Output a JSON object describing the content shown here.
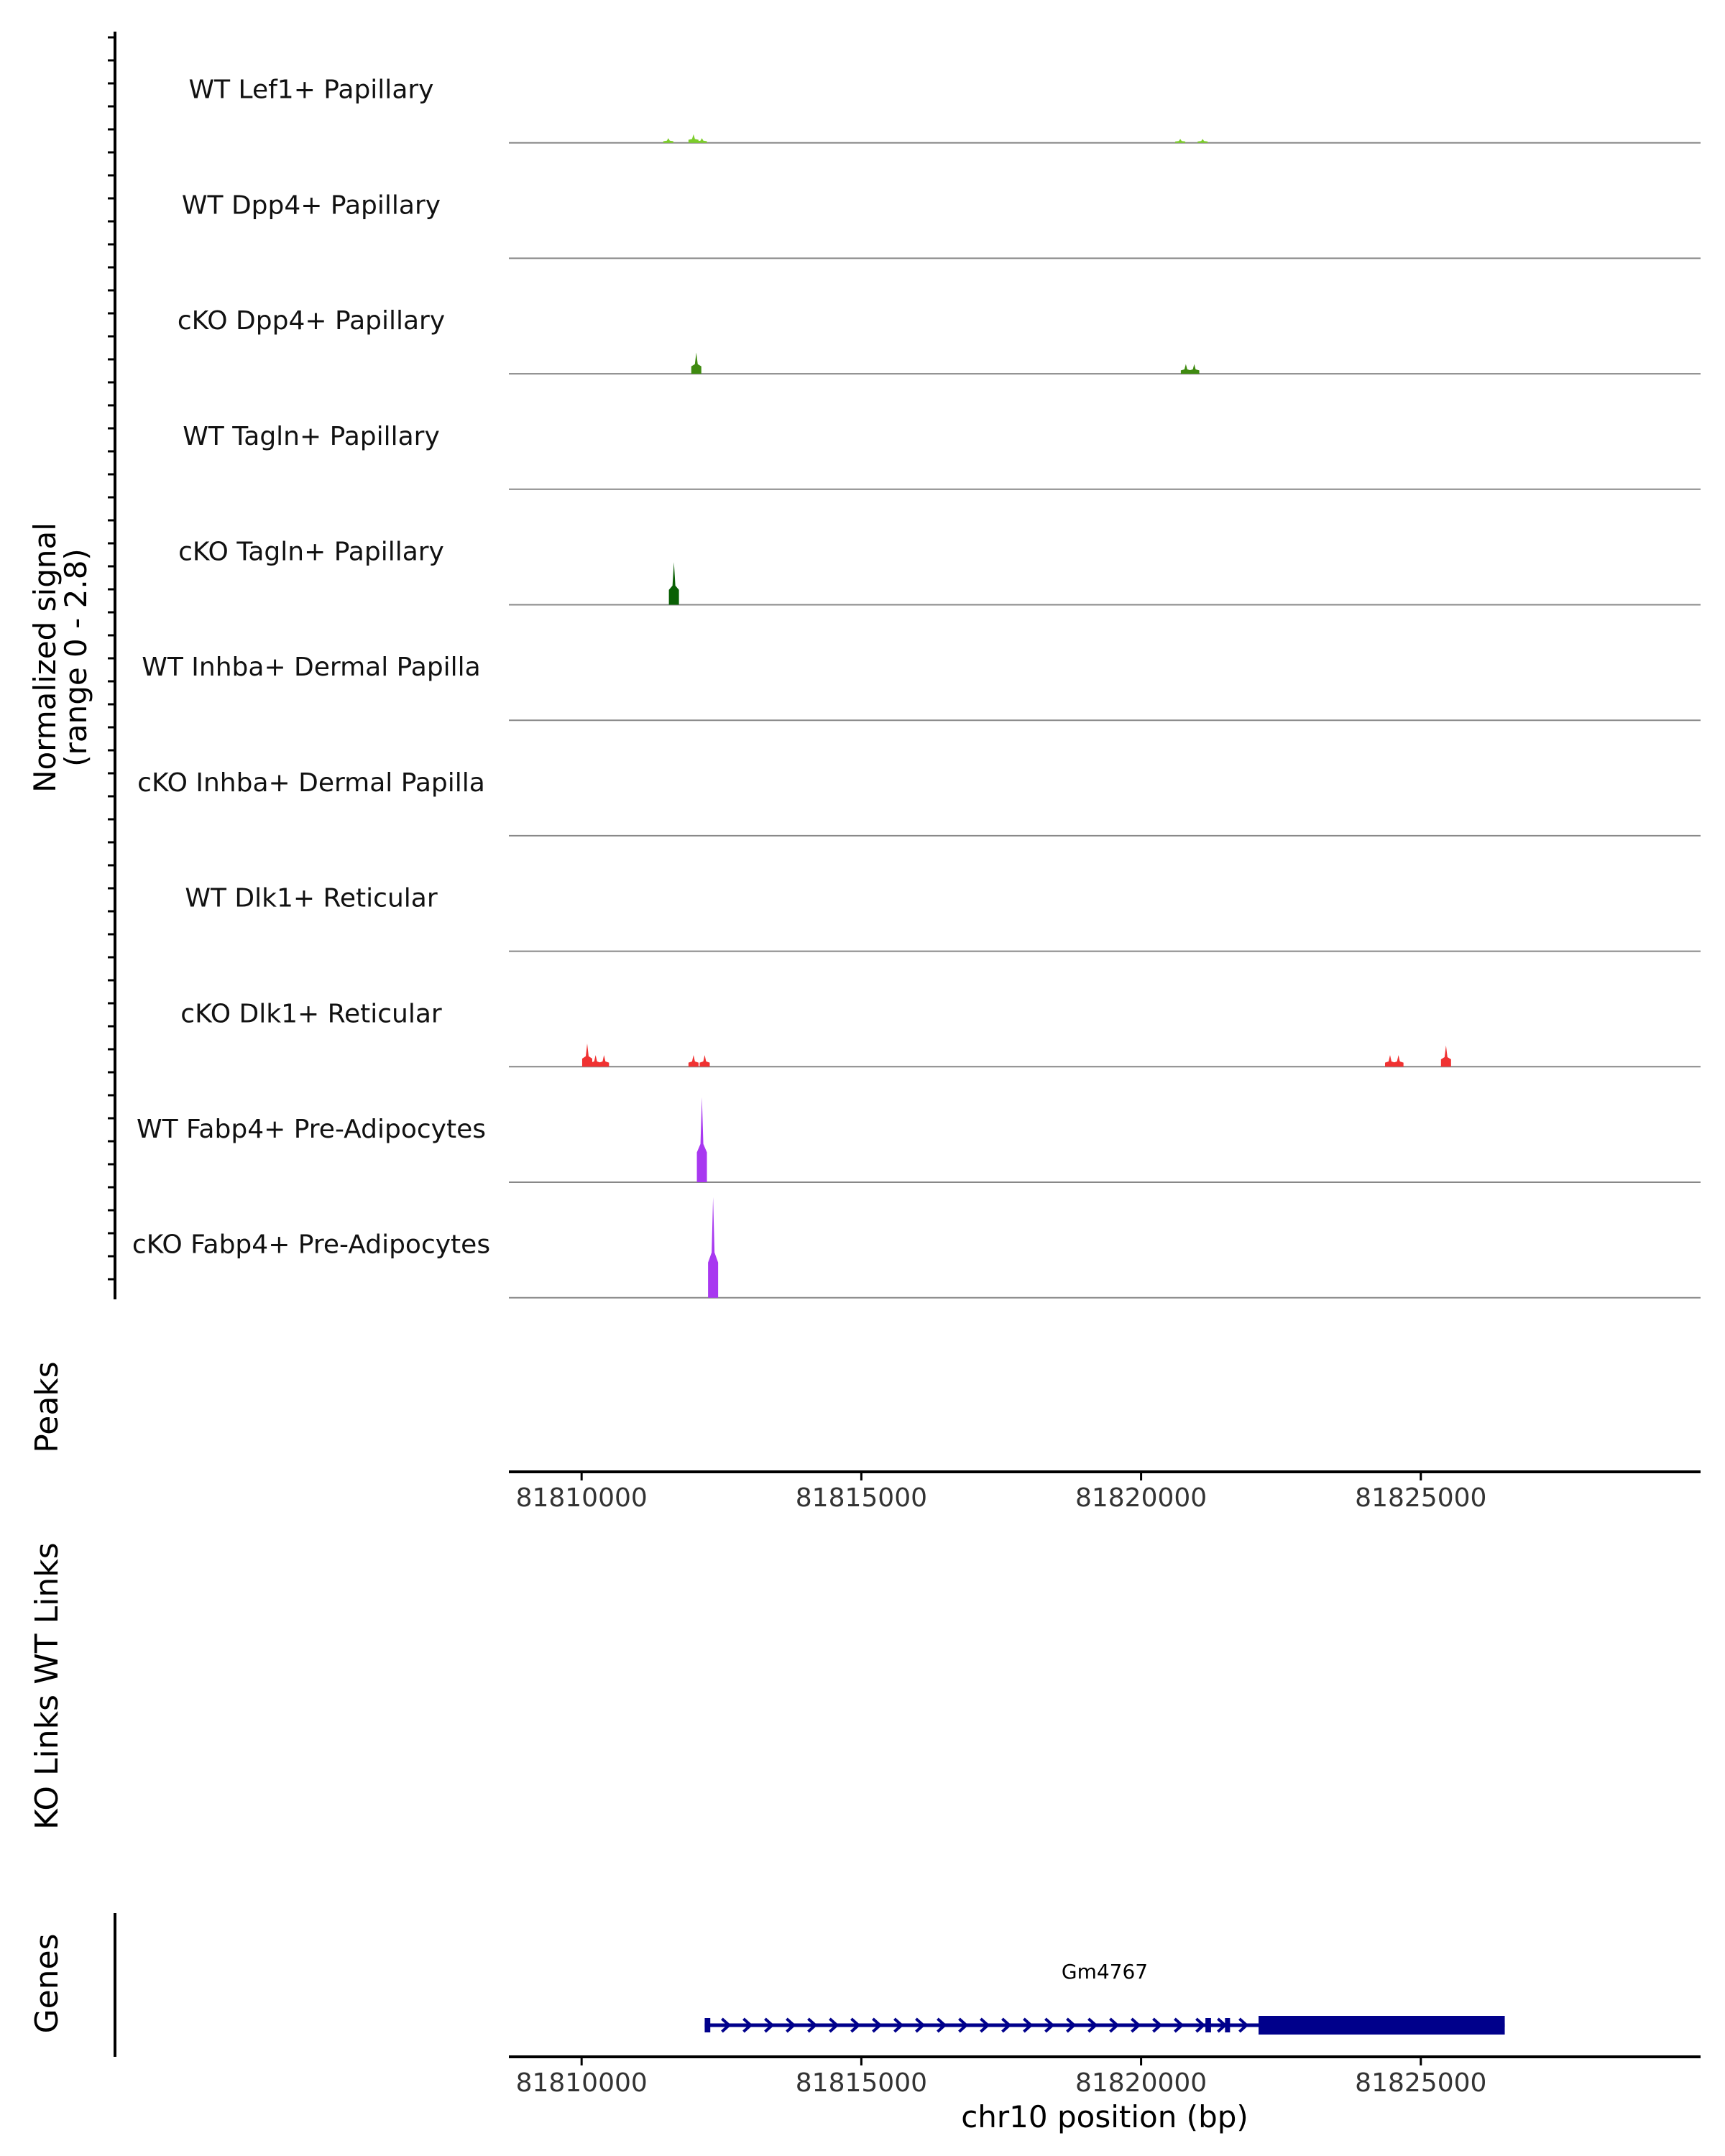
{
  "chart_data": {
    "type": "coverage_track",
    "chromosome": "chr10",
    "xlim": [
      81808700,
      81830000
    ],
    "ylim": [
      0,
      2.8
    ],
    "ylabel_line1": "Normalized signal",
    "ylabel_line2": "(range 0 - 2.8)",
    "x_ticks": [
      81810000,
      81815000,
      81820000,
      81825000
    ],
    "x_tick_labels": [
      "81810000",
      "81815000",
      "81820000",
      "81825000"
    ],
    "xlabel": "chr10 position (bp)",
    "coverage_tracks": [
      {
        "name": "WT Lef1+ Papillary",
        "color": "#7ccd2a",
        "signal": [
          [
            81811550,
            0.12
          ],
          [
            81812000,
            0.22
          ],
          [
            81812150,
            0.12
          ],
          [
            81820700,
            0.1
          ],
          [
            81821100,
            0.1
          ]
        ]
      },
      {
        "name": "WT Dpp4+ Papillary",
        "color": "#6aa121",
        "signal": []
      },
      {
        "name": "cKO Dpp4+ Papillary",
        "color": "#3f8a10",
        "signal": [
          [
            81812050,
            0.55
          ],
          [
            81820800,
            0.25
          ],
          [
            81820950,
            0.25
          ]
        ]
      },
      {
        "name": "WT Tagln+ Papillary",
        "color": "#2f7a10",
        "signal": []
      },
      {
        "name": "cKO Tagln+ Papillary",
        "color": "#0a6005",
        "signal": [
          [
            81811650,
            1.1
          ]
        ]
      },
      {
        "name": "WT Inhba+ Dermal Papilla",
        "color": "#999999",
        "signal": []
      },
      {
        "name": "cKO Inhba+ Dermal Papilla",
        "color": "#999999",
        "signal": []
      },
      {
        "name": "WT Dlk1+ Reticular",
        "color": "#f03232",
        "signal": []
      },
      {
        "name": "cKO Dlk1+ Reticular",
        "color": "#f03232",
        "signal": [
          [
            81810100,
            0.6
          ],
          [
            81810250,
            0.3
          ],
          [
            81810400,
            0.3
          ],
          [
            81812000,
            0.3
          ],
          [
            81812200,
            0.3
          ],
          [
            81824450,
            0.3
          ],
          [
            81824600,
            0.3
          ],
          [
            81825450,
            0.55
          ]
        ]
      },
      {
        "name": "WT Fabp4+ Pre-Adipocytes",
        "color": "#a838f0",
        "signal": [
          [
            81812150,
            2.2
          ]
        ]
      },
      {
        "name": "cKO Fabp4+ Pre-Adipocytes",
        "color": "#a838f0",
        "signal": [
          [
            81812350,
            2.6
          ]
        ]
      }
    ],
    "section_labels": [
      "Peaks",
      "WT Links",
      "KO Links",
      "Genes"
    ],
    "genes": [
      {
        "name": "Gm4767",
        "strand": "+",
        "start": 81812200,
        "end": 81826500,
        "exons": [
          [
            81812200,
            81812300
          ],
          [
            81821150,
            81821250
          ],
          [
            81821500,
            81821580
          ],
          [
            81822100,
            81826500
          ]
        ]
      }
    ]
  }
}
